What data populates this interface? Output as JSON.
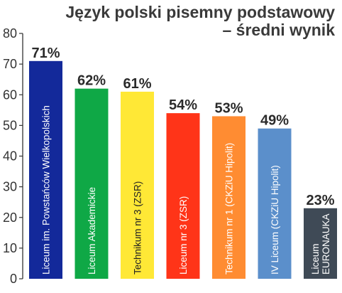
{
  "chart_data": {
    "type": "bar",
    "title_lines": [
      "Język polski pisemny podstawowy",
      "– średni wynik"
    ],
    "categories": [
      [
        "Liceum im. Powstańców Wielkopolskich"
      ],
      [
        "Liceum Akademickie"
      ],
      [
        "Technikum nr 3 (ZSR)"
      ],
      [
        "Liceum nr 3 (ZSR)"
      ],
      [
        "Technikum nr 1 (CKZiU Hipolit)"
      ],
      [
        "IV Liceum (CKZiU Hipolit)"
      ],
      [
        "Liceum",
        "EURONAUKA"
      ]
    ],
    "values": [
      71,
      62,
      61,
      54,
      53,
      49,
      23
    ],
    "value_labels": [
      "71%",
      "62%",
      "61%",
      "54%",
      "53%",
      "49%",
      "23%"
    ],
    "colors": [
      "#13299a",
      "#0fa846",
      "#ffe836",
      "#ff3418",
      "#ff8c32",
      "#5b8fcb",
      "#3f4a56"
    ],
    "label_colors": [
      "#ffffff",
      "#ffffff",
      "#222222",
      "#ffffff",
      "#ffffff",
      "#ffffff",
      "#ffffff"
    ],
    "yticks": [
      0,
      10,
      20,
      30,
      40,
      50,
      60,
      70,
      80
    ],
    "ylim": [
      0,
      80
    ],
    "grid": false,
    "legend": "none"
  }
}
